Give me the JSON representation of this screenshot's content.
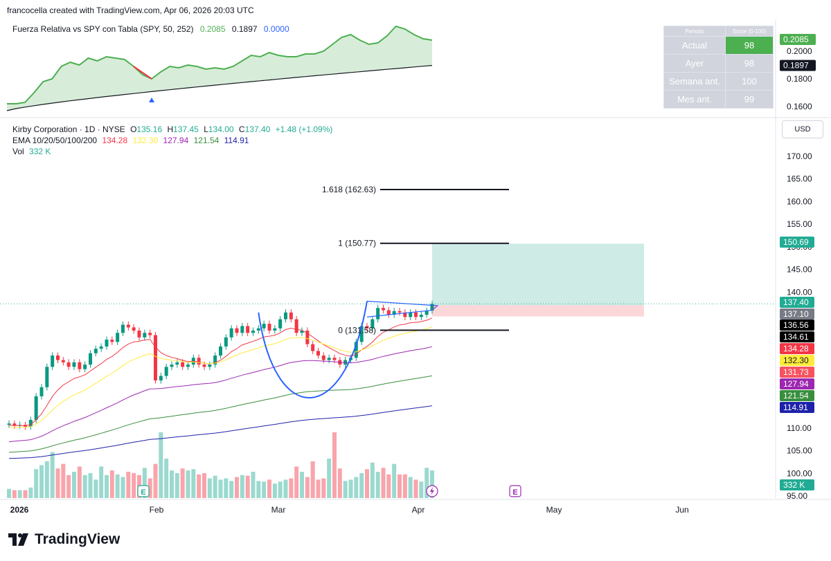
{
  "header": {
    "text": "francocella created with TradingView.com, Apr 06, 2026 20:03 UTC"
  },
  "rs_indicator": {
    "name": "Fuerza Relativa vs SPY con Tabla (SPY, 50, 252)",
    "v1": "0.2085",
    "v2": "0.1897",
    "v3": "0.0000",
    "v1_color": "#4caf50",
    "v2_color": "#131722",
    "v3_color": "#2962ff",
    "axis_ticks": [
      "0.2000",
      "0.1800",
      "0.1600"
    ],
    "badges": [
      {
        "text": "0.2085",
        "color": "#4caf50"
      },
      {
        "text": "0.1897",
        "color": "#131722"
      }
    ],
    "table": {
      "headers": [
        "Periodo",
        "Score (0-100)"
      ],
      "rows": [
        {
          "label": "Actual",
          "value": "98"
        },
        {
          "label": "Ayer",
          "value": "98"
        },
        {
          "label": "Semana ant.",
          "value": "100"
        },
        {
          "label": "Mes ant.",
          "value": "99"
        }
      ]
    }
  },
  "main": {
    "symbol_line": {
      "name": "Kirby Corporation · 1D · NYSE",
      "o_label": "O",
      "o": "135.16",
      "h_label": "H",
      "h": "137.45",
      "l_label": "L",
      "l": "134.00",
      "c_label": "C",
      "c": "137.40",
      "chg": "+1.48 (+1.09%)"
    },
    "ema_line": {
      "label": "EMA 10/20/50/100/200",
      "values": [
        "134.28",
        "132.30",
        "127.94",
        "121.54",
        "114.91"
      ],
      "colors": [
        "#f23645",
        "#ffeb3b",
        "#9c27b0",
        "#388e3c",
        "#1e22aa"
      ]
    },
    "vol_line": {
      "label": "Vol",
      "value": "332 K"
    },
    "currency": "USD",
    "fib_labels": [
      "1.618 (162.63)",
      "1 (150.77)",
      "0 (131.58)"
    ],
    "price_badges": [
      {
        "text": "150.69",
        "color": "#22ab94",
        "fg": "#fff"
      },
      {
        "text": "137.40",
        "color": "#22ab94",
        "fg": "#fff"
      },
      {
        "text": "137.10",
        "color": "#787b86",
        "fg": "#fff"
      },
      {
        "text": "136.56",
        "color": "#000000",
        "fg": "#fff"
      },
      {
        "text": "134.61",
        "color": "#000000",
        "fg": "#fff"
      },
      {
        "text": "134.28",
        "color": "#f23645",
        "fg": "#fff"
      },
      {
        "text": "132.30",
        "color": "#ffeb3b",
        "fg": "#131722"
      },
      {
        "text": "131.73",
        "color": "#f7525f",
        "fg": "#fff"
      },
      {
        "text": "127.94",
        "color": "#9c27b0",
        "fg": "#fff"
      },
      {
        "text": "121.54",
        "color": "#388e3c",
        "fg": "#fff"
      },
      {
        "text": "114.91",
        "color": "#1e22aa",
        "fg": "#fff"
      },
      {
        "text": "332 K",
        "color": "#22ab94",
        "fg": "#fff"
      }
    ],
    "event_marker": "E",
    "time_labels": [
      "2026",
      "Feb",
      "Mar",
      "Apr",
      "May",
      "Jun"
    ]
  },
  "brand": "TradingView",
  "chart_data": {
    "type": "candlestick",
    "title": "Kirby Corporation · 1D · NYSE",
    "ylabel": "USD",
    "y_ticks": [
      170,
      165,
      160,
      155,
      150,
      145,
      140,
      135,
      130,
      125,
      120,
      115,
      110,
      105,
      100,
      95
    ],
    "ylim": [
      95,
      173
    ],
    "x_ticks": [
      "2026",
      "Feb",
      "Mar",
      "Apr",
      "May",
      "Jun"
    ],
    "closes": [
      111.0,
      110.5,
      110.7,
      110.3,
      111.8,
      117.0,
      119.0,
      123.5,
      126.0,
      125.0,
      124.5,
      123.5,
      124.5,
      123.0,
      124.0,
      126.5,
      127.5,
      128.0,
      129.5,
      129.0,
      131.0,
      132.8,
      132.2,
      131.5,
      130.0,
      131.0,
      130.5,
      120.5,
      121.5,
      123.5,
      124.0,
      124.5,
      123.5,
      124.0,
      125.5,
      124.0,
      123.5,
      124.0,
      126.0,
      128.0,
      130.0,
      132.0,
      131.0,
      132.5,
      131.0,
      131.5,
      132.0,
      133.0,
      131.5,
      132.0,
      134.0,
      135.5,
      134.0,
      131.0,
      131.5,
      128.5,
      127.0,
      126.0,
      125.0,
      125.5,
      125.0,
      124.0,
      125.0,
      125.5,
      129.0,
      132.5,
      132.0,
      134.0,
      136.5,
      136.0,
      135.0,
      135.8,
      135.5,
      134.5,
      135.5,
      134.5,
      135.0,
      135.9,
      137.4
    ],
    "ema_series": [
      {
        "name": "EMA 10",
        "color": "#f23645",
        "last": 134.28
      },
      {
        "name": "EMA 20",
        "color": "#ffeb3b",
        "last": 132.3
      },
      {
        "name": "EMA 50",
        "color": "#9c27b0",
        "last": 127.94
      },
      {
        "name": "EMA 100",
        "color": "#388e3c",
        "last": 121.54
      },
      {
        "name": "EMA 200",
        "color": "#1e22aa",
        "last": 114.91
      }
    ],
    "fibonacci": [
      {
        "level": 1.618,
        "price": 162.63
      },
      {
        "level": 1,
        "price": 150.77
      },
      {
        "level": 0,
        "price": 131.58
      }
    ],
    "position": {
      "entry": 137.1,
      "target": 150.69,
      "stop": 134.61
    },
    "rs_values": [
      0.162,
      0.162,
      0.163,
      0.17,
      0.178,
      0.18,
      0.189,
      0.192,
      0.19,
      0.195,
      0.193,
      0.196,
      0.195,
      0.194,
      0.189,
      0.183,
      0.18,
      0.185,
      0.189,
      0.188,
      0.19,
      0.189,
      0.187,
      0.188,
      0.187,
      0.189,
      0.193,
      0.197,
      0.196,
      0.199,
      0.197,
      0.196,
      0.196,
      0.198,
      0.198,
      0.2,
      0.205,
      0.21,
      0.212,
      0.208,
      0.205,
      0.206,
      0.211,
      0.218,
      0.216,
      0.212,
      0.209,
      0.208
    ],
    "rs_baseline": [
      0.157,
      0.1897
    ],
    "rs_ylim": [
      0.156,
      0.222
    ],
    "volume_last": "332 K"
  }
}
